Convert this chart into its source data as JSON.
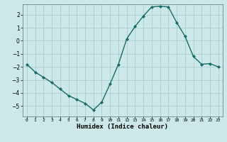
{
  "x": [
    0,
    1,
    2,
    3,
    4,
    5,
    6,
    7,
    8,
    9,
    10,
    11,
    12,
    13,
    14,
    15,
    16,
    17,
    18,
    19,
    20,
    21,
    22,
    23
  ],
  "y": [
    -1.8,
    -2.4,
    -2.8,
    -3.2,
    -3.7,
    -4.2,
    -4.5,
    -4.8,
    -5.3,
    -4.7,
    -3.3,
    -1.8,
    0.15,
    1.1,
    1.9,
    2.6,
    2.65,
    2.6,
    1.4,
    0.35,
    -1.2,
    -1.8,
    -1.75,
    -2.0
  ],
  "xlabel": "Humidex (Indice chaleur)",
  "ylim": [
    -5.8,
    2.8
  ],
  "xlim": [
    -0.5,
    23.5
  ],
  "yticks": [
    -5,
    -4,
    -3,
    -2,
    -1,
    0,
    1,
    2
  ],
  "xtick_labels": [
    "0",
    "1",
    "2",
    "3",
    "4",
    "5",
    "6",
    "7",
    "8",
    "9",
    "10",
    "11",
    "12",
    "13",
    "14",
    "15",
    "16",
    "17",
    "18",
    "19",
    "20",
    "21",
    "22",
    "23"
  ],
  "line_color": "#1a6b6b",
  "marker": "D",
  "marker_size": 2.0,
  "linewidth": 1.0,
  "bg_color": "#cce8e8",
  "grid_color": "#aacece",
  "xlabel_fontsize": 6.5,
  "xlabel_fontweight": "bold",
  "ytick_fontsize": 5.5,
  "xtick_fontsize": 4.5
}
